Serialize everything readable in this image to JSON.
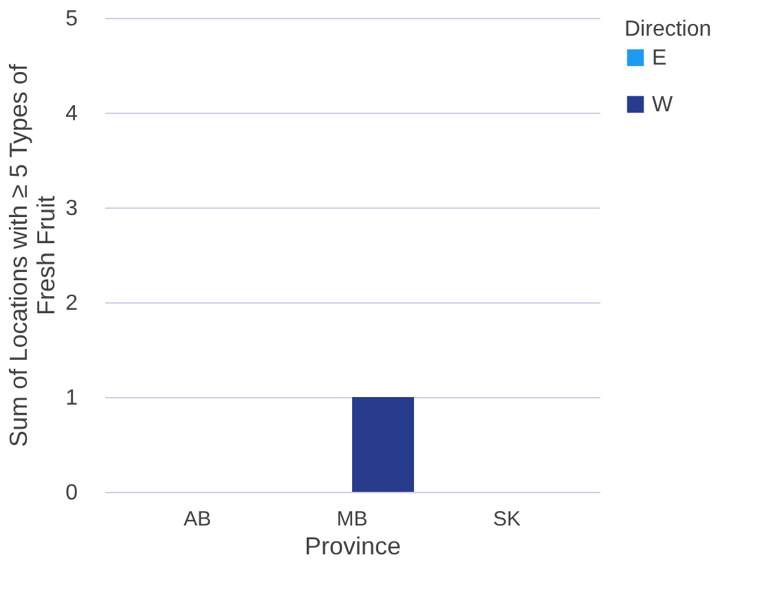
{
  "chart_data": {
    "type": "bar",
    "xlabel": "Province",
    "ylabel": "Sum of Locations with ≥ 5 Types of Fresh Fruit",
    "legend_title": "Direction",
    "categories": [
      "AB",
      "MB",
      "SK"
    ],
    "series": [
      {
        "name": "E",
        "color": "#1e9bf0",
        "values": [
          0,
          0,
          0
        ]
      },
      {
        "name": "W",
        "color": "#283c8e",
        "values": [
          0,
          1,
          0
        ]
      }
    ],
    "ylim": [
      0,
      5
    ],
    "yticks": [
      0,
      1,
      2,
      3,
      4,
      5
    ],
    "grid": "y",
    "legend": "right"
  }
}
